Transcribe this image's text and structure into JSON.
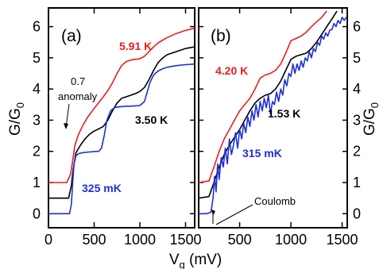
{
  "colors": {
    "red": "#ee1c1c",
    "black": "#000000",
    "blue": "#1f2fd8"
  },
  "chart_data": [
    {
      "type": "line",
      "panel_label": "(a)",
      "xlabel": "V_g (mV)",
      "ylabel": "G/G_0",
      "xlim": [
        0,
        1600
      ],
      "ylim": [
        -0.45,
        6.6
      ],
      "xticks": [
        "0",
        "500",
        "1000",
        "1500"
      ],
      "yticks": [
        "0",
        "1",
        "2",
        "3",
        "4",
        "5",
        "6"
      ],
      "series": [
        {
          "name": "5.91 K",
          "color": "red",
          "x": [
            0,
            200,
            240,
            260,
            290,
            330,
            380,
            430,
            480,
            520,
            560,
            600,
            650,
            700,
            750,
            800,
            850,
            900,
            950,
            1000,
            1050,
            1100,
            1150,
            1200,
            1300,
            1400,
            1500,
            1600
          ],
          "y": [
            1.0,
            1.0,
            1.25,
            1.6,
            2.2,
            2.55,
            2.85,
            3.1,
            3.3,
            3.45,
            3.6,
            3.75,
            3.95,
            4.2,
            4.5,
            4.75,
            4.88,
            4.93,
            4.95,
            4.97,
            5.05,
            5.2,
            5.35,
            5.48,
            5.65,
            5.78,
            5.88,
            5.95
          ]
        },
        {
          "name": "3.50 K",
          "color": "black",
          "x": [
            0,
            220,
            250,
            270,
            300,
            350,
            400,
            450,
            500,
            550,
            600,
            650,
            700,
            750,
            800,
            850,
            900,
            950,
            1000,
            1050,
            1100,
            1150,
            1200,
            1250,
            1300,
            1400,
            1500,
            1600
          ],
          "y": [
            0.5,
            0.5,
            0.9,
            1.4,
            1.95,
            2.2,
            2.4,
            2.55,
            2.65,
            2.72,
            2.8,
            3.0,
            3.3,
            3.55,
            3.7,
            3.75,
            3.8,
            3.85,
            3.92,
            4.05,
            4.3,
            4.6,
            4.85,
            5.0,
            5.1,
            5.2,
            5.3,
            5.35
          ]
        },
        {
          "name": "325 mK",
          "color": "blue",
          "x": [
            0,
            230,
            250,
            265,
            280,
            300,
            330,
            380,
            450,
            500,
            550,
            580,
            610,
            640,
            680,
            720,
            780,
            850,
            900,
            950,
            1000,
            1050,
            1080,
            1110,
            1150,
            1200,
            1250,
            1300,
            1400,
            1500,
            1600
          ],
          "y": [
            0.0,
            0.0,
            0.3,
            1.0,
            1.6,
            1.85,
            1.93,
            1.96,
            1.98,
            1.99,
            2.0,
            2.1,
            2.5,
            3.0,
            3.3,
            3.4,
            3.43,
            3.45,
            3.45,
            3.46,
            3.47,
            3.6,
            3.9,
            4.2,
            4.45,
            4.58,
            4.65,
            4.7,
            4.75,
            4.78,
            4.8
          ]
        }
      ],
      "annotations": [
        "0.7",
        "anomaly"
      ]
    },
    {
      "type": "line",
      "panel_label": "(b)",
      "xlabel": "V_g (mV)",
      "ylabel": "G/G_0",
      "xlim": [
        100,
        1550
      ],
      "ylim": [
        -0.45,
        6.6
      ],
      "xticks": [
        "500",
        "1000",
        "1500"
      ],
      "yticks": [
        "0",
        "1",
        "2",
        "3",
        "4",
        "5",
        "6"
      ],
      "series": [
        {
          "name": "4.20 K",
          "color": "red",
          "x": [
            100,
            200,
            250,
            300,
            350,
            400,
            450,
            500,
            550,
            600,
            650,
            700,
            750,
            800,
            850,
            900,
            950,
            1000,
            1050,
            1100,
            1150,
            1200,
            1250,
            1300,
            1350
          ],
          "y": [
            1.0,
            1.05,
            1.5,
            2.0,
            2.4,
            2.7,
            3.0,
            3.3,
            3.5,
            3.7,
            4.0,
            4.35,
            4.45,
            4.5,
            4.6,
            4.8,
            5.15,
            5.55,
            5.62,
            5.7,
            5.82,
            6.0,
            6.15,
            6.3,
            6.5
          ]
        },
        {
          "name": "1.53 K",
          "color": "black",
          "x": [
            100,
            200,
            250,
            300,
            350,
            400,
            450,
            500,
            550,
            600,
            650,
            700,
            750,
            800,
            850,
            900,
            950,
            1000,
            1050,
            1100,
            1150,
            1200,
            1250,
            1300,
            1350,
            1400,
            1450
          ],
          "y": [
            0.5,
            0.55,
            1.0,
            1.5,
            1.9,
            2.2,
            2.45,
            2.7,
            3.0,
            3.3,
            3.55,
            3.7,
            3.8,
            3.85,
            4.0,
            4.25,
            4.6,
            4.95,
            5.05,
            5.1,
            5.15,
            5.3,
            5.5,
            5.75,
            6.0,
            6.25,
            6.5
          ]
        },
        {
          "name": "315 mK",
          "color": "blue",
          "x": [
            100,
            180,
            220,
            240,
            255,
            270,
            285,
            300,
            320,
            340,
            360,
            380,
            400,
            420,
            440,
            460,
            480,
            500,
            520,
            540,
            560,
            580,
            600,
            620,
            640,
            660,
            680,
            700,
            720,
            740,
            760,
            780,
            800,
            820,
            840,
            860,
            880,
            900,
            920,
            940,
            960,
            980,
            1000,
            1020,
            1040,
            1060,
            1080,
            1100,
            1120,
            1140,
            1160,
            1180,
            1200,
            1220,
            1240,
            1260,
            1280,
            1300,
            1320,
            1340,
            1360,
            1380,
            1400,
            1420,
            1440,
            1460,
            1480,
            1500,
            1520,
            1540
          ],
          "y": [
            0.0,
            0.0,
            0.05,
            0.5,
            1.2,
            0.7,
            1.6,
            1.1,
            1.8,
            1.5,
            2.1,
            1.6,
            2.4,
            1.9,
            2.2,
            2.6,
            2.1,
            2.7,
            2.4,
            2.9,
            2.6,
            3.1,
            2.8,
            3.3,
            3.0,
            3.5,
            3.1,
            3.6,
            3.3,
            3.7,
            3.4,
            3.8,
            3.2,
            3.6,
            3.5,
            3.9,
            3.6,
            4.0,
            3.8,
            4.3,
            4.1,
            4.5,
            4.4,
            4.8,
            4.5,
            4.8,
            4.6,
            4.9,
            4.7,
            5.0,
            4.9,
            5.2,
            5.0,
            5.3,
            5.2,
            5.5,
            5.4,
            5.7,
            5.6,
            5.8,
            5.7,
            5.9,
            5.9,
            6.1,
            6.0,
            6.2,
            6.1,
            6.3,
            6.2,
            6.3
          ]
        }
      ],
      "annotations": [
        "Coulomb"
      ]
    }
  ]
}
